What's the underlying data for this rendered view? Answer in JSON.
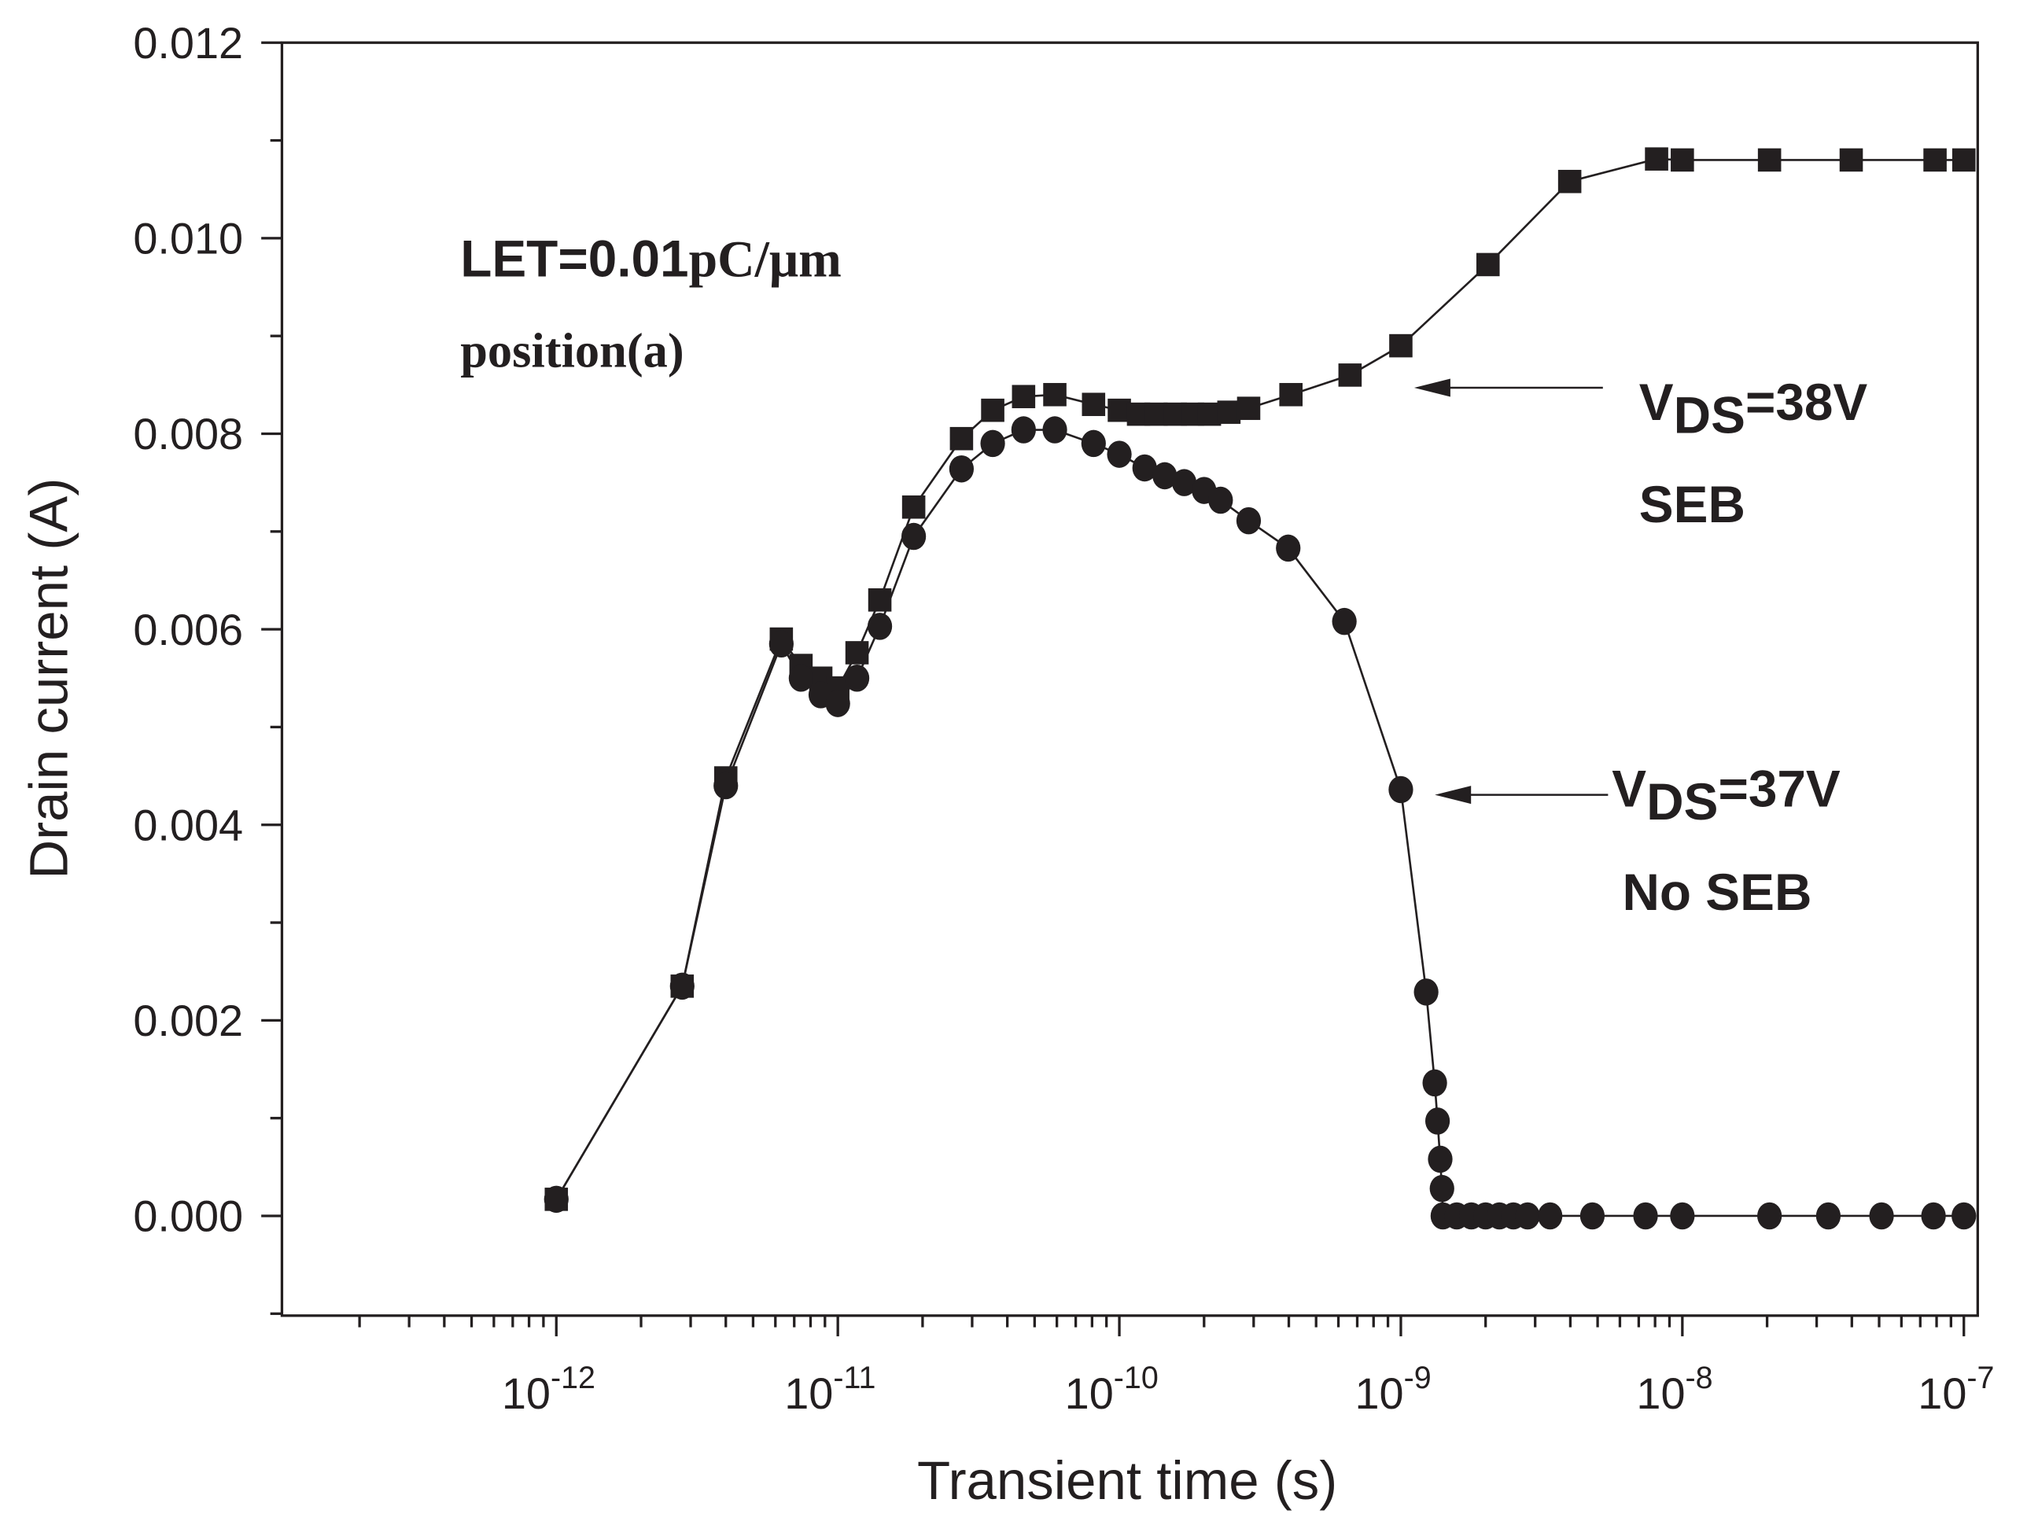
{
  "chart_data": {
    "type": "scatter",
    "title": "",
    "xlabel": "Transient time (s)",
    "ylabel": "Drain current (A)",
    "xscale": "log",
    "xlim": [
      1.06e-13,
      1.12e-07
    ],
    "ylim": [
      -0.00102,
      0.012
    ],
    "x_ticks": [
      {
        "value": 1e-12,
        "base": "10",
        "exp": "-12"
      },
      {
        "value": 1e-11,
        "base": "10",
        "exp": "-11"
      },
      {
        "value": 1e-10,
        "base": "10",
        "exp": "-10"
      },
      {
        "value": 1e-09,
        "base": "10",
        "exp": "-9"
      },
      {
        "value": 1e-08,
        "base": "10",
        "exp": "-8"
      },
      {
        "value": 1e-07,
        "base": "10",
        "exp": "-7"
      }
    ],
    "y_ticks": [
      {
        "value": 0.0,
        "label": "0.000"
      },
      {
        "value": 0.002,
        "label": "0.002"
      },
      {
        "value": 0.004,
        "label": "0.004"
      },
      {
        "value": 0.006,
        "label": "0.006"
      },
      {
        "value": 0.008,
        "label": "0.008"
      },
      {
        "value": 0.01,
        "label": "0.010"
      },
      {
        "value": 0.012,
        "label": "0.012"
      }
    ],
    "grid": false,
    "annotations": {
      "let_main": "LET=0.01",
      "let_unit": "pC/μm",
      "position": "position(a)",
      "s38_v": "V",
      "s38_sub": "DS",
      "s38_rest": "=38V",
      "s38_note": "SEB",
      "s37_v": "V",
      "s37_sub": "DS",
      "s37_rest": "=37V",
      "s37_note": "No SEB"
    },
    "series": [
      {
        "name": "VDS=38V SEB",
        "marker": "square",
        "color": "#231f20",
        "x": [
          1e-12,
          2.8e-12,
          4e-12,
          6.3e-12,
          7.4e-12,
          8.7e-12,
          1e-11,
          1.17e-11,
          1.41e-11,
          1.86e-11,
          2.75e-11,
          3.55e-11,
          4.57e-11,
          5.9e-11,
          8.1e-11,
          1e-10,
          1.17e-10,
          1.35e-10,
          1.58e-10,
          1.82e-10,
          2.09e-10,
          2.45e-10,
          2.88e-10,
          4.07e-10,
          6.6e-10,
          1e-09,
          2.04e-09,
          3.98e-09,
          8.1e-09,
          1e-08,
          2.04e-08,
          3.98e-08,
          7.9e-08,
          1e-07
        ],
        "y": [
          0.00017,
          0.00235,
          0.00448,
          0.0059,
          0.00563,
          0.0055,
          0.0054,
          0.00576,
          0.0063,
          0.00725,
          0.00795,
          0.00824,
          0.00838,
          0.0084,
          0.0083,
          0.00824,
          0.0082,
          0.0082,
          0.0082,
          0.0082,
          0.0082,
          0.00822,
          0.00826,
          0.0084,
          0.0086,
          0.0089,
          0.00973,
          0.01058,
          0.01081,
          0.0108,
          0.0108,
          0.0108,
          0.0108,
          0.0108
        ]
      },
      {
        "name": "VDS=37V No SEB",
        "marker": "circle",
        "color": "#231f20",
        "x": [
          1e-12,
          2.8e-12,
          4e-12,
          6.3e-12,
          7.4e-12,
          8.7e-12,
          1e-11,
          1.17e-11,
          1.41e-11,
          1.86e-11,
          2.75e-11,
          3.55e-11,
          4.57e-11,
          5.9e-11,
          8.1e-11,
          1e-10,
          1.23e-10,
          1.45e-10,
          1.7e-10,
          2e-10,
          2.29e-10,
          2.88e-10,
          3.98e-10,
          6.3e-10,
          1e-09,
          1.23e-09,
          1.32e-09,
          1.35e-09,
          1.38e-09,
          1.4e-09,
          1.41e-09,
          1.58e-09,
          1.78e-09,
          2e-09,
          2.24e-09,
          2.51e-09,
          2.82e-09,
          3.39e-09,
          4.79e-09,
          7.4e-09,
          1e-08,
          2.04e-08,
          3.3e-08,
          5.1e-08,
          7.8e-08,
          1e-07
        ],
        "y": [
          0.00017,
          0.00235,
          0.0044,
          0.00585,
          0.0055,
          0.00533,
          0.00524,
          0.0055,
          0.00603,
          0.00695,
          0.00764,
          0.0079,
          0.00804,
          0.00804,
          0.0079,
          0.00779,
          0.00765,
          0.00757,
          0.0075,
          0.00742,
          0.00732,
          0.00711,
          0.00683,
          0.00608,
          0.00436,
          0.00229,
          0.00136,
          0.00097,
          0.00058,
          0.00028,
          0,
          0,
          0,
          0,
          0,
          0,
          0,
          0,
          0,
          0,
          0,
          0,
          0,
          0,
          0,
          0
        ]
      }
    ]
  }
}
